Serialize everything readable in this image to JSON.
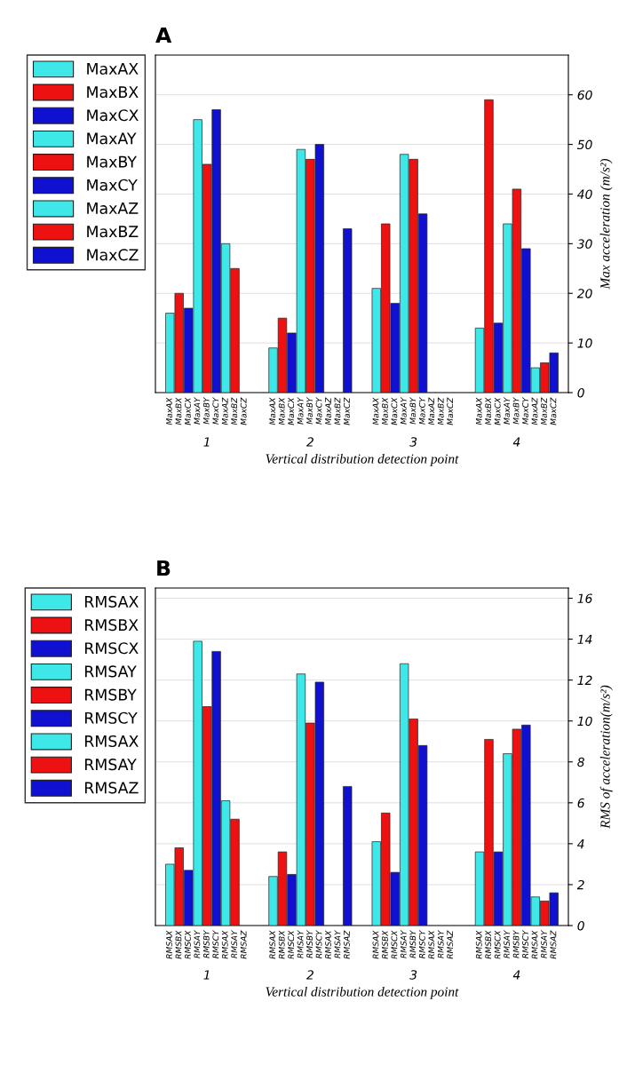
{
  "chart_data": [
    {
      "type": "bar",
      "title": "A",
      "xlabel": "Vertical distribution detection point",
      "ylabel": "Max acceleration (m/s²)",
      "categories": [
        "1",
        "2",
        "3",
        "4"
      ],
      "series": [
        {
          "name": "MaxAX",
          "color": "#3ee8e8",
          "values": [
            16,
            9,
            21,
            13
          ]
        },
        {
          "name": "MaxBX",
          "color": "#ee1111",
          "values": [
            20,
            15,
            34,
            59
          ]
        },
        {
          "name": "MaxCX",
          "color": "#1010d0",
          "values": [
            17,
            12,
            18,
            14
          ]
        },
        {
          "name": "MaxAY",
          "color": "#3ee8e8",
          "values": [
            55,
            49,
            48,
            34
          ]
        },
        {
          "name": "MaxBY",
          "color": "#ee1111",
          "values": [
            46,
            47,
            47,
            41
          ]
        },
        {
          "name": "MaxCY",
          "color": "#1010d0",
          "values": [
            57,
            50,
            36,
            29
          ]
        },
        {
          "name": "MaxAZ",
          "color": "#3ee8e8",
          "values": [
            30,
            null,
            null,
            5
          ]
        },
        {
          "name": "MaxBZ",
          "color": "#ee1111",
          "values": [
            25,
            null,
            null,
            6
          ]
        },
        {
          "name": "MaxCZ",
          "color": "#1010d0",
          "values": [
            null,
            33,
            null,
            8
          ]
        }
      ],
      "ylim": [
        0,
        68
      ],
      "yticks": [
        0,
        10,
        20,
        30,
        40,
        50,
        60
      ],
      "grid": "y",
      "legend": "left"
    },
    {
      "type": "bar",
      "title": "B",
      "xlabel": "Vertical distribution detection point",
      "ylabel": "RMS of acceleration(m/s²)",
      "categories": [
        "1",
        "2",
        "3",
        "4"
      ],
      "series": [
        {
          "name": "RMSAX",
          "color": "#3ee8e8",
          "values": [
            3.0,
            2.4,
            4.1,
            3.6
          ]
        },
        {
          "name": "RMSBX",
          "color": "#ee1111",
          "values": [
            3.8,
            3.6,
            5.5,
            9.1
          ]
        },
        {
          "name": "RMSCX",
          "color": "#1010d0",
          "values": [
            2.7,
            2.5,
            2.6,
            3.6
          ]
        },
        {
          "name": "RMSAY",
          "color": "#3ee8e8",
          "values": [
            13.9,
            12.3,
            12.8,
            8.4
          ]
        },
        {
          "name": "RMSBY",
          "color": "#ee1111",
          "values": [
            10.7,
            9.9,
            10.1,
            9.6
          ]
        },
        {
          "name": "RMSCY",
          "color": "#1010d0",
          "values": [
            13.4,
            11.9,
            8.8,
            9.8
          ]
        },
        {
          "name": "RMSAX",
          "color": "#3ee8e8",
          "values": [
            6.1,
            null,
            null,
            1.4
          ]
        },
        {
          "name": "RMSAY",
          "color": "#ee1111",
          "values": [
            5.2,
            null,
            null,
            1.2
          ]
        },
        {
          "name": "RMSAZ",
          "color": "#1010d0",
          "values": [
            null,
            6.8,
            null,
            1.6
          ]
        }
      ],
      "ylim": [
        0,
        16.5
      ],
      "yticks": [
        0,
        2,
        4,
        6,
        8,
        10,
        12,
        14,
        16
      ],
      "grid": "y",
      "legend": "left"
    }
  ]
}
